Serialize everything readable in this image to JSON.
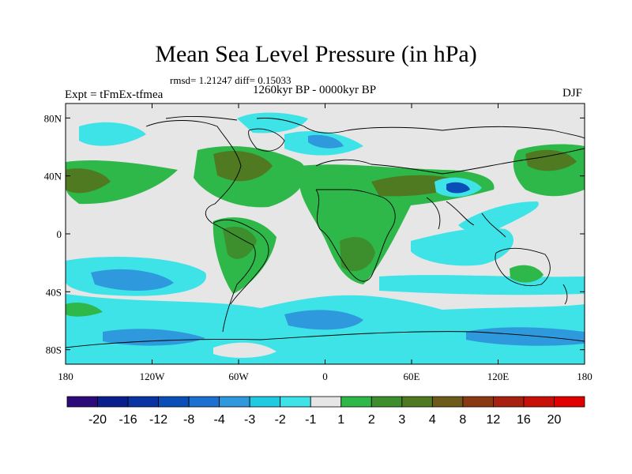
{
  "title": "Mean Sea Level Pressure (in hPa)",
  "stats": "rmsd= 1.21247 diff= 0.15033",
  "period": "1260kyr BP - 0000kyr BP",
  "experiment": "Expt = tFmEx-tfmea",
  "season": "DJF",
  "axes": {
    "lon_labels": [
      "180",
      "120W",
      "60W",
      "0",
      "60E",
      "120E",
      "180"
    ],
    "lat_labels": [
      "80N",
      "40N",
      "0",
      "40S",
      "80S"
    ]
  },
  "colorbar": {
    "labels": [
      "-20",
      "-16",
      "-12",
      "-8",
      "-4",
      "-3",
      "-2",
      "-1",
      "1",
      "2",
      "3",
      "4",
      "8",
      "12",
      "16",
      "20"
    ],
    "colors": [
      "#2c0a7a",
      "#0a1e8c",
      "#0b34a3",
      "#0a4fb8",
      "#1d6fd0",
      "#2e99dc",
      "#1ecbe3",
      "#3ee3e8",
      "#e6e6e6",
      "#2fb84a",
      "#3d8f2e",
      "#4f7a22",
      "#6e5a1a",
      "#8a3a12",
      "#a82010",
      "#c80f08",
      "#e00000"
    ]
  },
  "colors": {
    "ocean_neutral": "#e6e6e6",
    "green": "#2fb84a",
    "dark_green": "#3d8f2e",
    "olive": "#4f7a22",
    "brown": "#6e5a1a",
    "cyan": "#3ee3e8",
    "light_blue": "#1ecbe3",
    "blue": "#2e99dc",
    "deep_blue": "#1d6fd0",
    "navy": "#0a4fb8"
  }
}
